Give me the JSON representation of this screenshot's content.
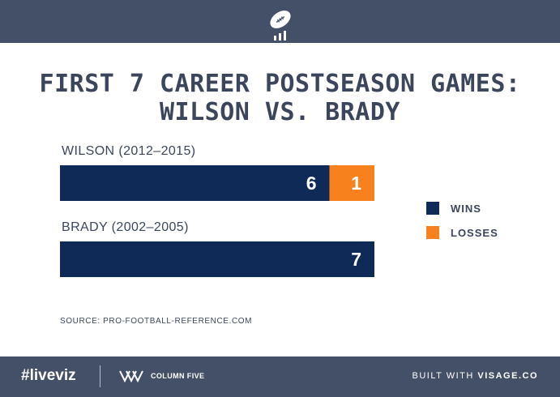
{
  "title_line1": "FIRST 7 CAREER POSTSEASON GAMES:",
  "title_line2": "WILSON VS. BRADY",
  "source": "SOURCE: PRO-FOOTBALL-REFERENCE.COM",
  "footer": {
    "hashtag": "#liveviz",
    "brand": "COLUMN FIVE",
    "built_prefix": "BUILT WITH ",
    "built_name": "VISAGE.CO"
  },
  "colors": {
    "wins": "#0f2a56",
    "losses": "#f7821d",
    "header": "#435068",
    "text": "#3b465c"
  },
  "chart_data": {
    "type": "bar",
    "orientation": "horizontal",
    "stacked": true,
    "categories": [
      "WILSON (2012–2015)",
      "BRADY (2002–2005)"
    ],
    "series": [
      {
        "name": "WINS",
        "values": [
          6,
          7
        ]
      },
      {
        "name": "LOSSES",
        "values": [
          1,
          0
        ]
      }
    ],
    "xlim": [
      0,
      7
    ],
    "legend": "right"
  }
}
